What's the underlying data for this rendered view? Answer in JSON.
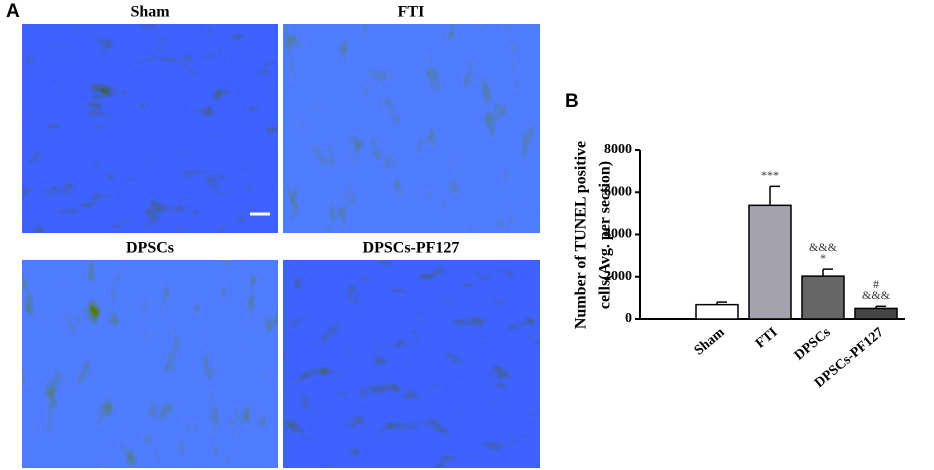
{
  "panel_a": {
    "label": "A",
    "titles": [
      "Sham",
      "FTI",
      "DPSCs",
      "DPSCs-PF127"
    ]
  },
  "chart_data": {
    "type": "bar",
    "panel_label": "B",
    "y_label": [
      "Number of TUNEL positive",
      "cells(Avg. per section)"
    ],
    "categories": [
      "Sham",
      "FTI",
      "DPSCs",
      "DPSCs-PF127"
    ],
    "values": [
      680,
      5380,
      2030,
      500
    ],
    "errors": [
      120,
      900,
      330,
      100
    ],
    "colors": [
      "#ffffff",
      "#a3a3ad",
      "#666666",
      "#444444"
    ],
    "annotations": [
      [],
      [
        "***"
      ],
      [
        "&&&",
        "*"
      ],
      [
        "#",
        "&&&"
      ]
    ],
    "ylim": [
      0,
      8000
    ],
    "yticks": [
      0,
      2000,
      4000,
      6000,
      8000
    ],
    "grid": false
  }
}
